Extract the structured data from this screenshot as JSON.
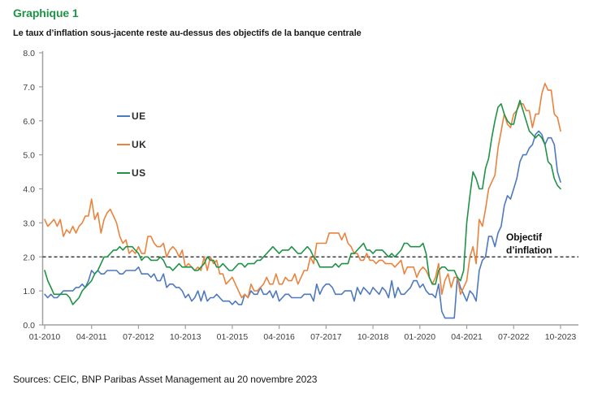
{
  "header": {
    "title": "Graphique 1",
    "subtitle": "Le taux d’inflation sous-jacente reste au-dessus des objectifs de la banque centrale"
  },
  "annotation": {
    "line1": "Objectif",
    "line2": "d’inflation"
  },
  "footer": {
    "source": "Sources: CEIC, BNP Paribas Asset Management au 20 novembre 2023"
  },
  "colors": {
    "title_green": "#1E9347",
    "ue_blue": "#4E79BD",
    "uk_orange": "#E9833D",
    "us_green": "#1E9347",
    "axis_gray": "#A0A0A0",
    "label_gray": "#3d3d3d",
    "target_line_black": "#161616"
  },
  "chart_data": {
    "type": "line",
    "title": "Le taux d’inflation sous-jacente reste au-dessus des objectifs de la banque centrale",
    "xlabel": "",
    "ylabel": "",
    "frequency": "monthly",
    "x_start": "01-2010",
    "x_end": "10-2023",
    "ylim": [
      0.0,
      8.0
    ],
    "grid": false,
    "legend_position": "upper-left-inside",
    "y_tick_labels": [
      "0.0",
      "1.0",
      "2.0",
      "3.0",
      "4.0",
      "5.0",
      "6.0",
      "7.0",
      "8.0"
    ],
    "x_tick_labels": [
      "01-2010",
      "04-2011",
      "07-2012",
      "10-2013",
      "01-2015",
      "04-2016",
      "07-2017",
      "10-2018",
      "01-2020",
      "04-2021",
      "07-2022",
      "10-2023"
    ],
    "x_tick_month_indices": [
      0,
      15,
      30,
      45,
      60,
      75,
      90,
      105,
      120,
      135,
      150,
      165
    ],
    "target_line": {
      "value": 2.0,
      "style": "dashed",
      "label": "Objectif d’inflation"
    },
    "series": [
      {
        "name": "UE",
        "color": "#4E79BD",
        "values": [
          0.9,
          0.8,
          0.9,
          0.8,
          0.8,
          0.9,
          1.0,
          1.0,
          1.0,
          1.0,
          1.1,
          1.1,
          1.2,
          1.1,
          1.3,
          1.6,
          1.5,
          1.6,
          1.5,
          1.5,
          1.6,
          1.6,
          1.6,
          1.6,
          1.5,
          1.5,
          1.6,
          1.6,
          1.6,
          1.6,
          1.7,
          1.5,
          1.5,
          1.5,
          1.4,
          1.5,
          1.3,
          1.3,
          1.5,
          1.1,
          1.2,
          1.2,
          1.1,
          1.1,
          1.0,
          0.8,
          0.9,
          0.7,
          0.8,
          1.0,
          0.7,
          1.0,
          0.7,
          0.8,
          0.8,
          0.9,
          0.8,
          0.7,
          0.7,
          0.7,
          0.6,
          0.7,
          0.6,
          0.6,
          0.9,
          0.8,
          1.0,
          0.9,
          0.9,
          1.1,
          0.9,
          0.9,
          1.0,
          0.8,
          1.0,
          0.7,
          0.8,
          0.9,
          0.9,
          0.8,
          0.8,
          0.8,
          0.8,
          0.9,
          0.9,
          0.9,
          0.7,
          1.2,
          0.9,
          1.1,
          1.2,
          1.2,
          1.1,
          0.9,
          0.9,
          0.9,
          1.0,
          1.0,
          1.0,
          0.7,
          1.1,
          0.9,
          1.1,
          1.0,
          0.9,
          1.1,
          1.0,
          0.9,
          1.1,
          1.0,
          0.8,
          1.3,
          0.8,
          1.1,
          0.9,
          0.9,
          1.0,
          1.1,
          1.3,
          1.3,
          1.1,
          1.2,
          1.0,
          0.9,
          0.9,
          0.8,
          1.2,
          0.4,
          0.2,
          0.2,
          0.2,
          0.2,
          1.4,
          1.1,
          0.9,
          0.7,
          1.0,
          0.9,
          0.7,
          1.6,
          1.9,
          2.0,
          2.6,
          2.6,
          2.3,
          2.7,
          2.9,
          3.5,
          3.8,
          3.7,
          4.0,
          4.3,
          4.8,
          5.0,
          5.0,
          5.2,
          5.3,
          5.6,
          5.7,
          5.6,
          5.3,
          5.5,
          5.5,
          5.3,
          4.5,
          4.2
        ]
      },
      {
        "name": "UK",
        "color": "#E9833D",
        "values": [
          3.1,
          2.9,
          3.0,
          3.1,
          2.9,
          3.1,
          2.6,
          2.8,
          2.7,
          2.9,
          2.7,
          2.9,
          3.0,
          3.2,
          3.2,
          3.7,
          3.1,
          3.3,
          2.7,
          3.1,
          3.3,
          3.4,
          3.2,
          3.0,
          2.6,
          2.4,
          2.5,
          2.1,
          2.2,
          2.1,
          2.3,
          2.1,
          2.1,
          2.6,
          2.6,
          2.4,
          2.3,
          2.3,
          2.4,
          2.0,
          2.2,
          2.3,
          2.2,
          2.0,
          2.2,
          1.7,
          1.8,
          1.7,
          1.6,
          1.7,
          1.6,
          2.0,
          1.6,
          2.0,
          1.8,
          1.9,
          1.5,
          1.5,
          1.2,
          1.3,
          1.4,
          1.2,
          1.0,
          0.8,
          0.9,
          0.8,
          1.2,
          1.0,
          1.0,
          1.1,
          1.2,
          1.4,
          1.2,
          1.2,
          1.5,
          1.2,
          1.2,
          1.4,
          1.3,
          1.3,
          1.5,
          1.2,
          1.4,
          1.6,
          1.6,
          2.0,
          1.8,
          2.4,
          2.4,
          2.4,
          2.4,
          2.7,
          2.7,
          2.7,
          2.7,
          2.5,
          2.7,
          2.4,
          2.3,
          2.1,
          2.1,
          1.9,
          1.9,
          2.1,
          1.9,
          1.9,
          1.8,
          1.9,
          1.9,
          1.8,
          1.8,
          1.8,
          1.7,
          1.8,
          1.9,
          1.5,
          1.7,
          1.7,
          1.7,
          1.4,
          1.6,
          1.7,
          1.6,
          1.4,
          1.2,
          1.4,
          1.8,
          0.9,
          1.3,
          1.5,
          1.1,
          1.4,
          1.4,
          0.9,
          1.1,
          1.3,
          2.0,
          2.3,
          1.8,
          3.1,
          2.9,
          3.4,
          4.0,
          4.2,
          4.4,
          5.2,
          5.7,
          6.2,
          5.9,
          5.8,
          6.2,
          6.3,
          6.5,
          6.5,
          6.3,
          6.3,
          5.8,
          6.2,
          6.2,
          6.8,
          7.1,
          6.9,
          6.9,
          6.2,
          6.1,
          5.7
        ]
      },
      {
        "name": "US",
        "color": "#1E9347",
        "values": [
          1.6,
          1.3,
          1.1,
          0.9,
          0.9,
          0.9,
          0.9,
          0.9,
          0.8,
          0.6,
          0.7,
          0.8,
          1.0,
          1.1,
          1.2,
          1.3,
          1.5,
          1.6,
          1.8,
          2.0,
          2.0,
          2.1,
          2.2,
          2.2,
          2.3,
          2.2,
          2.3,
          2.3,
          2.3,
          2.2,
          2.1,
          1.9,
          2.0,
          2.0,
          1.9,
          1.9,
          1.9,
          2.0,
          1.9,
          1.7,
          1.7,
          1.6,
          1.7,
          1.8,
          1.7,
          1.7,
          1.7,
          1.7,
          1.6,
          1.6,
          1.7,
          1.8,
          2.0,
          1.9,
          1.9,
          1.7,
          1.7,
          1.8,
          1.7,
          1.6,
          1.6,
          1.7,
          1.8,
          1.8,
          1.7,
          1.8,
          1.8,
          1.8,
          1.9,
          1.9,
          2.0,
          2.1,
          2.2,
          2.3,
          2.2,
          2.1,
          2.2,
          2.2,
          2.2,
          2.3,
          2.2,
          2.1,
          2.1,
          2.2,
          2.3,
          2.2,
          2.0,
          1.9,
          1.7,
          1.7,
          1.7,
          1.7,
          1.7,
          1.8,
          1.7,
          1.8,
          1.8,
          1.8,
          2.1,
          2.1,
          2.2,
          2.3,
          2.4,
          2.2,
          2.2,
          2.1,
          2.2,
          2.2,
          2.2,
          2.1,
          2.0,
          2.1,
          2.0,
          2.1,
          2.2,
          2.4,
          2.4,
          2.3,
          2.3,
          2.3,
          2.3,
          2.4,
          2.1,
          1.4,
          1.2,
          1.2,
          1.6,
          1.7,
          1.7,
          1.6,
          1.6,
          1.6,
          1.4,
          1.3,
          1.6,
          3.0,
          3.8,
          4.5,
          4.3,
          4.0,
          4.0,
          4.6,
          4.9,
          5.5,
          6.0,
          6.4,
          6.5,
          6.2,
          6.0,
          5.9,
          5.9,
          6.3,
          6.6,
          6.3,
          6.0,
          5.7,
          5.6,
          5.5,
          5.6,
          5.5,
          5.3,
          4.8,
          4.7,
          4.3,
          4.1,
          4.0
        ]
      }
    ]
  }
}
